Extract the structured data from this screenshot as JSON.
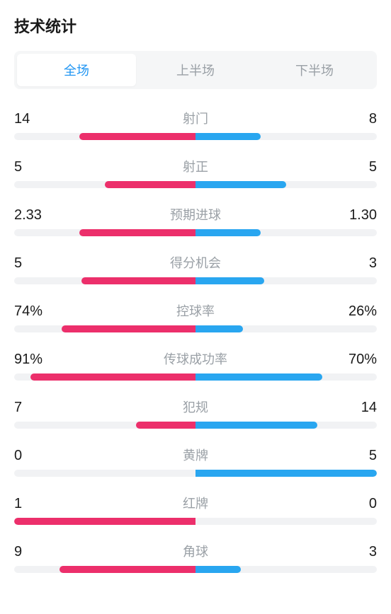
{
  "title": "技术统计",
  "tabs": [
    {
      "label": "全场",
      "active": true
    },
    {
      "label": "上半场",
      "active": false
    },
    {
      "label": "下半场",
      "active": false
    }
  ],
  "colors": {
    "left": "#ec2f6b",
    "right": "#29a6f0",
    "track": "#f1f2f4",
    "label": "#9aa0a6",
    "value": "#1a1a1a",
    "tab_active": "#2196f3",
    "tab_inactive": "#9aa0a6"
  },
  "stats": [
    {
      "label": "射门",
      "left_val": "14",
      "right_val": "8",
      "left_pct": 64,
      "right_pct": 36
    },
    {
      "label": "射正",
      "left_val": "5",
      "right_val": "5",
      "left_pct": 50,
      "right_pct": 50
    },
    {
      "label": "预期进球",
      "left_val": "2.33",
      "right_val": "1.30",
      "left_pct": 64,
      "right_pct": 36
    },
    {
      "label": "得分机会",
      "left_val": "5",
      "right_val": "3",
      "left_pct": 63,
      "right_pct": 38
    },
    {
      "label": "控球率",
      "left_val": "74%",
      "right_val": "26%",
      "left_pct": 74,
      "right_pct": 26
    },
    {
      "label": "传球成功率",
      "left_val": "91%",
      "right_val": "70%",
      "left_pct": 91,
      "right_pct": 70
    },
    {
      "label": "犯规",
      "left_val": "7",
      "right_val": "14",
      "left_pct": 33,
      "right_pct": 67
    },
    {
      "label": "黄牌",
      "left_val": "0",
      "right_val": "5",
      "left_pct": 0,
      "right_pct": 100
    },
    {
      "label": "红牌",
      "left_val": "1",
      "right_val": "0",
      "left_pct": 100,
      "right_pct": 0
    },
    {
      "label": "角球",
      "left_val": "9",
      "right_val": "3",
      "left_pct": 75,
      "right_pct": 25
    }
  ]
}
